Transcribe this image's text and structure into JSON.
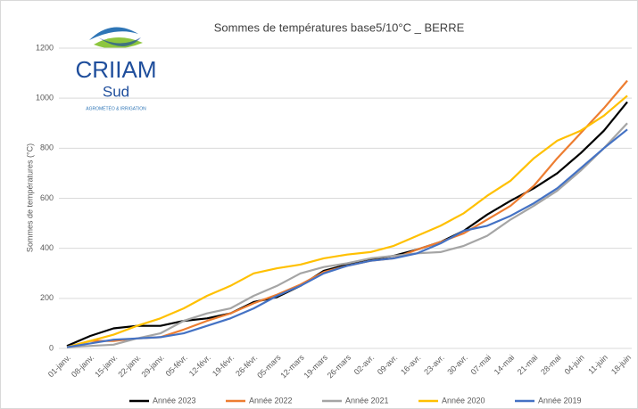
{
  "chart_data": {
    "type": "line",
    "title": "Sommes de températures base5/10°C _ BERRE",
    "ylabel": "Sommes de températures (°C)",
    "logo": [
      "CRIIAM",
      "Sud",
      "AGROMÉTÉO & IRRIGATION"
    ],
    "categories": [
      "01-janv.",
      "08-janv.",
      "15-janv.",
      "22-janv.",
      "29-janv.",
      "05-févr.",
      "12-févr.",
      "19-févr.",
      "26-févr.",
      "05-mars",
      "12-mars",
      "19-mars",
      "26-mars",
      "02-avr.",
      "09-avr.",
      "16-avr.",
      "23-avr.",
      "30-avr.",
      "07-mai",
      "14-mai",
      "21-mai",
      "28-mai",
      "04-juin",
      "11-juin",
      "18-juin"
    ],
    "series": [
      {
        "name": "Année 2023",
        "color": "#000000",
        "values": [
          10,
          50,
          80,
          90,
          90,
          110,
          120,
          140,
          185,
          205,
          250,
          310,
          335,
          355,
          370,
          395,
          425,
          470,
          535,
          590,
          640,
          700,
          780,
          870,
          985
        ]
      },
      {
        "name": "Année 2022",
        "color": "#ed7d31",
        "values": [
          5,
          30,
          30,
          40,
          45,
          75,
          110,
          140,
          180,
          215,
          255,
          305,
          330,
          350,
          360,
          395,
          425,
          460,
          515,
          570,
          650,
          760,
          860,
          960,
          1070
        ]
      },
      {
        "name": "Année 2021",
        "color": "#a5a5a5",
        "values": [
          5,
          10,
          15,
          40,
          60,
          110,
          140,
          160,
          210,
          250,
          300,
          325,
          340,
          360,
          370,
          380,
          385,
          410,
          450,
          515,
          570,
          630,
          710,
          800,
          900
        ]
      },
      {
        "name": "Année 2020",
        "color": "#ffc000",
        "values": [
          5,
          30,
          55,
          90,
          120,
          160,
          210,
          250,
          300,
          320,
          335,
          360,
          375,
          385,
          410,
          450,
          490,
          540,
          610,
          670,
          760,
          830,
          870,
          930,
          1010
        ]
      },
      {
        "name": "Année 2019",
        "color": "#4472c4",
        "values": [
          5,
          20,
          35,
          40,
          45,
          60,
          90,
          120,
          160,
          210,
          250,
          300,
          330,
          350,
          360,
          380,
          420,
          470,
          490,
          530,
          580,
          640,
          720,
          800,
          875
        ]
      }
    ],
    "ylim": [
      0,
      1200
    ],
    "yticks": [
      0,
      200,
      400,
      600,
      800,
      1000,
      1200
    ],
    "grid": true,
    "legend": "bottom"
  }
}
